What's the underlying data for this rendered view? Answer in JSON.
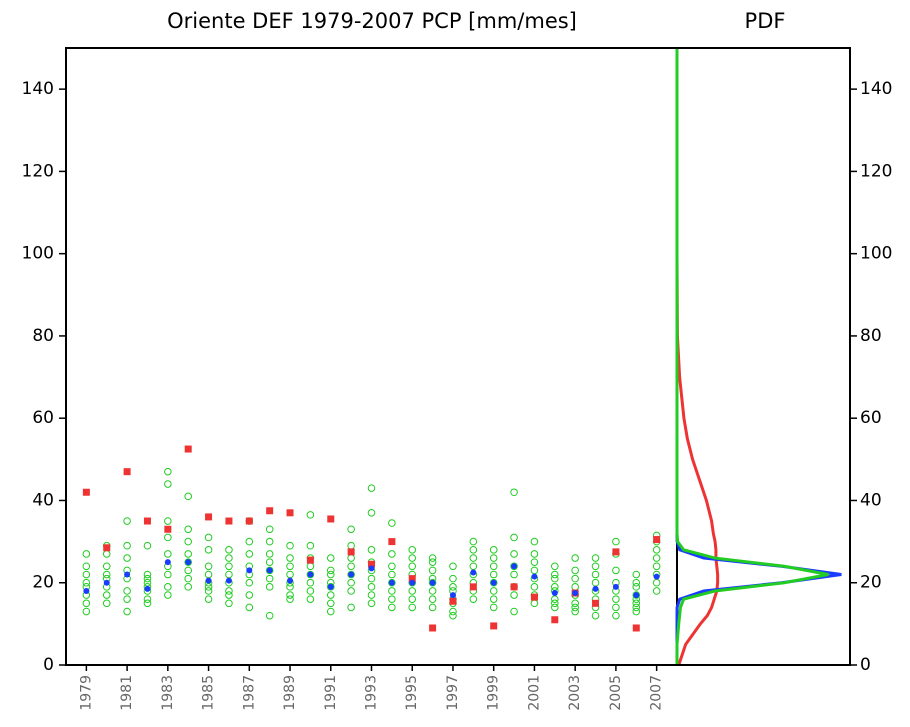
{
  "chart_data": {
    "type": "scatter",
    "title": "Oriente DEF 1979-2007 PCP [mm/mes]",
    "x": [
      1979,
      1980,
      1981,
      1982,
      1983,
      1984,
      1985,
      1986,
      1987,
      1988,
      1989,
      1990,
      1991,
      1992,
      1993,
      1994,
      1995,
      1996,
      1997,
      1998,
      1999,
      2000,
      2001,
      2002,
      2003,
      2004,
      2005,
      2006,
      2007
    ],
    "xlim": [
      1978,
      2008
    ],
    "xticks": [
      1979,
      1981,
      1983,
      1985,
      1987,
      1989,
      1991,
      1993,
      1995,
      1997,
      1999,
      2001,
      2003,
      2005,
      2007
    ],
    "ylim": [
      0,
      150
    ],
    "yticks": [
      0,
      20,
      40,
      60,
      80,
      100,
      120,
      140
    ],
    "series": [
      {
        "color": "#22cc22",
        "marker": "open-circle",
        "values": [
          [
            13,
            15,
            17,
            19,
            20,
            22,
            24,
            27
          ],
          [
            15,
            17,
            19,
            21,
            22,
            24,
            27,
            29
          ],
          [
            13,
            16,
            18,
            21,
            23,
            26,
            29,
            35
          ],
          [
            15,
            16,
            18,
            19,
            20,
            21,
            22,
            29
          ],
          [
            17,
            19,
            22,
            24,
            27,
            31,
            35,
            44,
            47
          ],
          [
            19,
            21,
            23,
            25,
            27,
            30,
            33,
            41
          ],
          [
            16,
            18,
            19,
            20,
            22,
            24,
            28,
            31
          ],
          [
            15,
            17,
            18,
            20,
            22,
            24,
            26,
            28
          ],
          [
            14,
            17,
            20,
            22,
            24,
            27,
            30,
            35
          ],
          [
            12,
            19,
            21,
            23,
            25,
            27,
            30,
            33
          ],
          [
            16,
            17,
            19,
            20,
            22,
            24,
            26,
            29
          ],
          [
            16,
            18,
            20,
            22,
            24,
            26,
            29,
            36.5
          ],
          [
            13,
            15,
            17,
            19,
            20,
            22,
            23,
            26
          ],
          [
            14,
            18,
            20,
            22,
            24,
            26,
            29,
            33
          ],
          [
            15,
            17,
            19,
            21,
            23,
            25,
            28,
            37,
            43
          ],
          [
            14,
            16,
            18,
            20,
            22,
            24,
            27,
            34.5
          ],
          [
            14,
            16,
            18,
            20,
            22,
            24,
            26,
            28
          ],
          [
            14,
            16,
            18,
            20,
            21,
            23,
            25,
            26
          ],
          [
            12,
            13,
            15,
            16,
            18,
            19,
            21,
            24
          ],
          [
            16,
            18,
            20,
            22,
            24,
            26,
            28,
            30
          ],
          [
            14,
            16,
            18,
            20,
            22,
            24,
            26,
            28
          ],
          [
            13,
            17,
            19,
            22,
            24,
            27,
            31,
            42
          ],
          [
            15,
            17,
            19,
            21,
            23,
            25,
            27,
            30
          ],
          [
            14,
            15,
            16,
            18,
            19,
            21,
            22,
            24
          ],
          [
            13,
            14,
            15,
            17,
            19,
            21,
            23,
            26
          ],
          [
            12,
            14,
            16,
            18,
            20,
            22,
            24,
            26
          ],
          [
            12,
            14,
            16,
            18,
            20,
            23,
            27,
            30
          ],
          [
            13,
            14,
            15,
            16,
            17,
            19,
            20,
            22
          ],
          [
            18,
            20,
            22,
            24,
            26,
            28,
            30,
            31.5
          ]
        ]
      },
      {
        "color": "#1a3cff",
        "marker": "dot",
        "values": [
          18,
          20,
          22,
          18.5,
          25,
          25,
          20.5,
          20.5,
          23,
          23,
          20.5,
          22,
          19,
          22,
          23.5,
          20,
          20,
          20,
          17,
          22.5,
          20,
          24,
          21.5,
          17.5,
          17.5,
          18.5,
          19,
          17,
          21.5
        ]
      },
      {
        "color": "#ee3333",
        "marker": "square",
        "values": [
          42,
          28.5,
          47,
          35,
          33,
          52.5,
          36,
          35,
          35,
          37.5,
          37,
          25.5,
          35.5,
          27.5,
          24.5,
          30,
          21,
          9,
          15.5,
          19,
          9.5,
          19,
          16.5,
          11,
          17.5,
          15,
          27.5,
          9,
          30.5
        ]
      }
    ],
    "pdf": {
      "title": "PDF",
      "y": [
        0,
        5,
        10,
        12,
        14,
        16,
        18,
        20,
        22,
        24,
        26,
        28,
        30,
        32,
        35,
        40,
        45,
        50,
        55,
        60,
        70,
        80,
        100,
        150
      ],
      "xlim": [
        0,
        0.2
      ],
      "series": [
        {
          "color": "#ee3333",
          "values": [
            0.002,
            0.01,
            0.027,
            0.035,
            0.04,
            0.043,
            0.046,
            0.047,
            0.047,
            0.046,
            0.045,
            0.045,
            0.044,
            0.042,
            0.04,
            0.034,
            0.026,
            0.018,
            0.012,
            0.008,
            0.003,
            0.0005,
            0,
            0
          ]
        },
        {
          "color": "#1a3cff",
          "values": [
            0,
            0,
            0,
            0,
            0.0001,
            0.0032,
            0.031,
            0.121,
            0.19,
            0.121,
            0.031,
            0.0032,
            0.0002,
            0,
            0,
            0,
            0,
            0,
            0,
            0,
            0,
            0,
            0,
            0
          ]
        },
        {
          "color": "#22cc22",
          "values": [
            0,
            0,
            0.002,
            0.003,
            0.004,
            0.0077,
            0.044,
            0.124,
            0.175,
            0.124,
            0.044,
            0.0077,
            0.0007,
            0,
            0,
            0,
            0,
            0,
            0,
            0,
            0,
            0,
            0,
            0
          ]
        }
      ]
    }
  }
}
